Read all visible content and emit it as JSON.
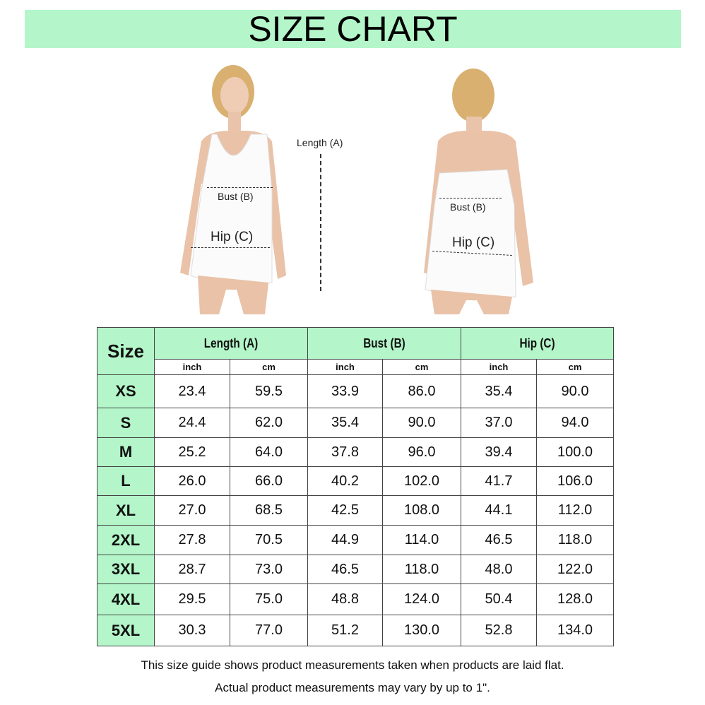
{
  "title": "SIZE CHART",
  "front": {
    "length": "Length (A)",
    "bust": "Bust (B)",
    "hip": "Hip (C)"
  },
  "back": {
    "bust": "Bust (B)",
    "hip": "Hip (C)"
  },
  "colors": {
    "accent": "#b4f6c9",
    "garment": "#ffffff",
    "skin": "#e9c2a8"
  },
  "table": {
    "size_header": "Size",
    "groups": [
      "Length (A)",
      "Bust (B)",
      "Hip (C)"
    ],
    "units": [
      "inch",
      "cm",
      "inch",
      "cm",
      "inch",
      "cm"
    ],
    "rows": [
      {
        "size": "XS",
        "values": [
          "23.4",
          "59.5",
          "33.9",
          "86.0",
          "35.4",
          "90.0"
        ]
      },
      {
        "size": "S",
        "values": [
          "24.4",
          "62.0",
          "35.4",
          "90.0",
          "37.0",
          "94.0"
        ]
      },
      {
        "size": "M",
        "values": [
          "25.2",
          "64.0",
          "37.8",
          "96.0",
          "39.4",
          "100.0"
        ]
      },
      {
        "size": "L",
        "values": [
          "26.0",
          "66.0",
          "40.2",
          "102.0",
          "41.7",
          "106.0"
        ]
      },
      {
        "size": "XL",
        "values": [
          "27.0",
          "68.5",
          "42.5",
          "108.0",
          "44.1",
          "112.0"
        ]
      },
      {
        "size": "2XL",
        "values": [
          "27.8",
          "70.5",
          "44.9",
          "114.0",
          "46.5",
          "118.0"
        ]
      },
      {
        "size": "3XL",
        "values": [
          "28.7",
          "73.0",
          "46.5",
          "118.0",
          "48.0",
          "122.0"
        ]
      },
      {
        "size": "4XL",
        "values": [
          "29.5",
          "75.0",
          "48.8",
          "124.0",
          "50.4",
          "128.0"
        ]
      },
      {
        "size": "5XL",
        "values": [
          "30.3",
          "77.0",
          "51.2",
          "130.0",
          "52.8",
          "134.0"
        ]
      }
    ]
  },
  "notes": [
    "This size guide shows product measurements taken when products are laid flat.",
    "Actual product measurements may vary by up to 1\"."
  ]
}
